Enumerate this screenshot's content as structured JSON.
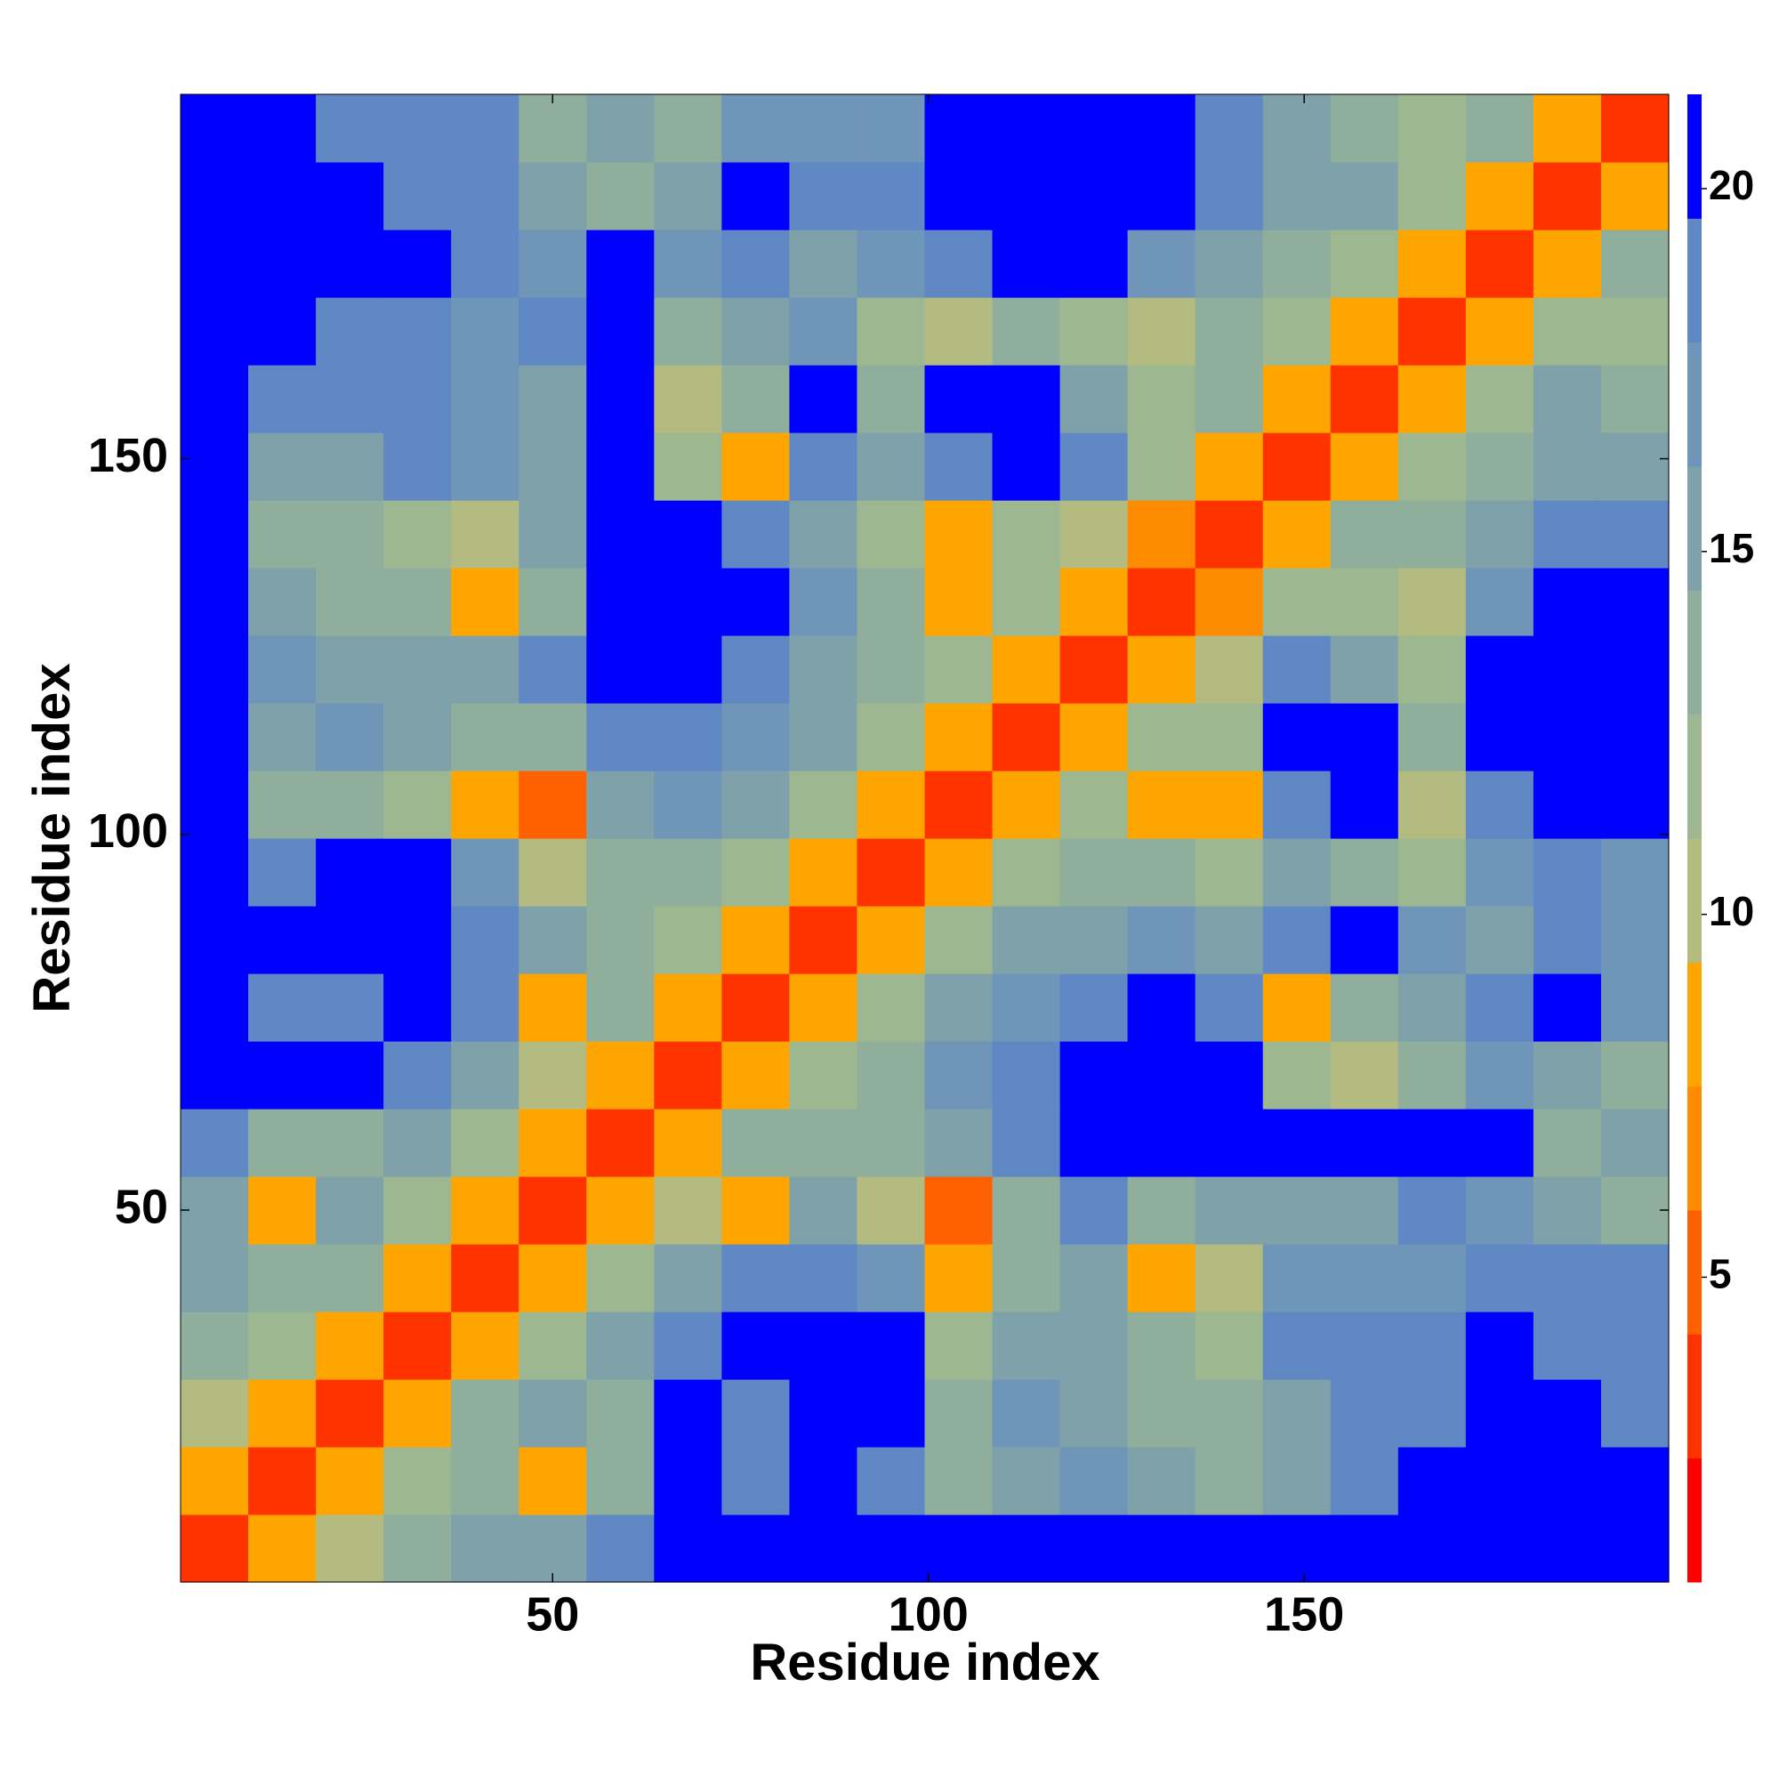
{
  "chart_data": {
    "type": "heatmap",
    "xlabel": "Residue index",
    "ylabel": "Residue index",
    "x": [
      5,
      14,
      23,
      32,
      41,
      50,
      59,
      68,
      77,
      86,
      95,
      104,
      113,
      122,
      131,
      140,
      149,
      158,
      167,
      176,
      185,
      194
    ],
    "y": [
      5,
      14,
      23,
      32,
      41,
      50,
      59,
      68,
      77,
      86,
      95,
      104,
      113,
      122,
      131,
      140,
      149,
      158,
      167,
      176,
      185,
      194
    ],
    "xlim": [
      0.5,
      198.5
    ],
    "ylim": [
      0.5,
      198.5
    ],
    "xticks": [
      50,
      100,
      150
    ],
    "yticks": [
      50,
      100,
      150
    ],
    "clim": [
      0.8,
      21.3
    ],
    "cticks": [
      5,
      10,
      15,
      20
    ],
    "colormap": [
      "#ff0000",
      "#ff3300",
      "#ff6000",
      "#ff8c00",
      "#ffa500",
      "#b3bb80",
      "#9db890",
      "#8fae9c",
      "#7fa2aa",
      "#6f95b8",
      "#5f88c4",
      "#0000ff"
    ],
    "z": [
      [
        3,
        8,
        11,
        14,
        15,
        16,
        18,
        21,
        21,
        21,
        21,
        20,
        21,
        21,
        21,
        20,
        21,
        21,
        21,
        21,
        21,
        21
      ],
      [
        8,
        3,
        8,
        12,
        14,
        9,
        13,
        21,
        18,
        20,
        18,
        14,
        16,
        17,
        15,
        13,
        16,
        19,
        20,
        21,
        21,
        21
      ],
      [
        11,
        8,
        3,
        8,
        13,
        15,
        14,
        20,
        19,
        21,
        20,
        13,
        17,
        16,
        14,
        14,
        16,
        18,
        19,
        20,
        21,
        19
      ],
      [
        14,
        12,
        8,
        3,
        8,
        12,
        15,
        19,
        20,
        21,
        20,
        12,
        15,
        15,
        13,
        12,
        18,
        19,
        18,
        21,
        19,
        18
      ],
      [
        15,
        14,
        13,
        8,
        3,
        8,
        12,
        16,
        18,
        19,
        17,
        9,
        13,
        16,
        8,
        10,
        17,
        17,
        17,
        18,
        18,
        19
      ],
      [
        16,
        9,
        15,
        12,
        8,
        3,
        8,
        10,
        9,
        16,
        11,
        5,
        14,
        18,
        14,
        15,
        16,
        16,
        18,
        17,
        15,
        14
      ],
      [
        18,
        13,
        14,
        15,
        12,
        8,
        3,
        8,
        13,
        13,
        14,
        16,
        18,
        20,
        21,
        21,
        21,
        20,
        21,
        20,
        14,
        15
      ],
      [
        21,
        21,
        20,
        19,
        16,
        10,
        8,
        3,
        8,
        12,
        13,
        17,
        18,
        21,
        21,
        21,
        12,
        11,
        14,
        17,
        15,
        13
      ],
      [
        21,
        18,
        19,
        20,
        18,
        9,
        13,
        8,
        3,
        8,
        12,
        15,
        17,
        19,
        20,
        18,
        8,
        13,
        16,
        18,
        20,
        17
      ],
      [
        21,
        20,
        21,
        21,
        19,
        16,
        13,
        12,
        8,
        3,
        8,
        12,
        15,
        16,
        17,
        15,
        18,
        20,
        17,
        15,
        19,
        17
      ],
      [
        21,
        18,
        20,
        20,
        17,
        11,
        14,
        13,
        12,
        8,
        3,
        8,
        12,
        14,
        13,
        12,
        15,
        14,
        12,
        17,
        19,
        17
      ],
      [
        20,
        14,
        13,
        12,
        9,
        5,
        16,
        17,
        15,
        12,
        8,
        3,
        8,
        12,
        9,
        8,
        19,
        20,
        11,
        19,
        21,
        20
      ],
      [
        21,
        16,
        17,
        15,
        13,
        14,
        18,
        18,
        17,
        15,
        12,
        8,
        3,
        8,
        12,
        12,
        20,
        21,
        13,
        21,
        21,
        21
      ],
      [
        21,
        17,
        16,
        15,
        16,
        18,
        20,
        21,
        19,
        16,
        14,
        12,
        8,
        3,
        8,
        10,
        18,
        15,
        12,
        21,
        21,
        20
      ],
      [
        21,
        15,
        14,
        13,
        8,
        14,
        21,
        21,
        20,
        17,
        13,
        9,
        12,
        8,
        3,
        6,
        12,
        12,
        11,
        17,
        20,
        20
      ],
      [
        20,
        13,
        14,
        12,
        10,
        15,
        21,
        21,
        18,
        15,
        12,
        8,
        12,
        10,
        6,
        3,
        8,
        13,
        14,
        16,
        18,
        19
      ],
      [
        21,
        16,
        16,
        18,
        17,
        16,
        21,
        12,
        8,
        18,
        15,
        19,
        20,
        18,
        12,
        8,
        3,
        8,
        12,
        13,
        16,
        16
      ],
      [
        21,
        19,
        18,
        19,
        17,
        16,
        20,
        11,
        13,
        20,
        14,
        20,
        21,
        15,
        12,
        13,
        8,
        3,
        8,
        12,
        15,
        13
      ],
      [
        21,
        20,
        19,
        18,
        17,
        18,
        21,
        14,
        16,
        17,
        12,
        11,
        13,
        12,
        11,
        14,
        12,
        8,
        3,
        8,
        12,
        12
      ],
      [
        21,
        21,
        20,
        21,
        18,
        17,
        20,
        17,
        18,
        15,
        17,
        19,
        21,
        21,
        17,
        16,
        13,
        12,
        8,
        3,
        8,
        13
      ],
      [
        21,
        21,
        21,
        19,
        18,
        15,
        14,
        15,
        20,
        19,
        19,
        21,
        21,
        21,
        20,
        18,
        16,
        15,
        12,
        8,
        3,
        8
      ],
      [
        21,
        21,
        19,
        18,
        19,
        14,
        15,
        13,
        17,
        17,
        17,
        20,
        21,
        20,
        20,
        19,
        16,
        13,
        12,
        13,
        8,
        3
      ]
    ]
  }
}
